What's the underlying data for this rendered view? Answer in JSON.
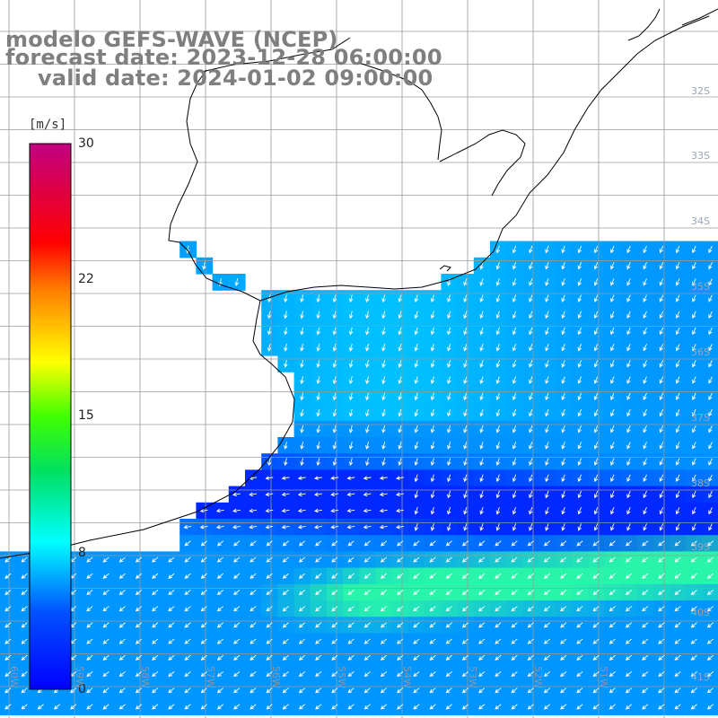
{
  "title": {
    "line1": "modelo GEFS-WAVE (NCEP)",
    "line2": "forecast date: 2023-12-28 06:00:00",
    "line3": "valid date: 2024-01-02 09:00:00"
  },
  "colorbar": {
    "unit": "[m/s]",
    "ticks": [
      {
        "label": "30",
        "value": 30
      },
      {
        "label": "22",
        "value": 22
      },
      {
        "label": "15",
        "value": 15
      },
      {
        "label": "8",
        "value": 8
      },
      {
        "label": "0",
        "value": 0
      }
    ],
    "min": 0,
    "max": 30
  },
  "map": {
    "lat_labels": [
      "32S",
      "33S",
      "34S",
      "35S",
      "36S",
      "37S",
      "38S",
      "39S",
      "40S",
      "41S"
    ],
    "lon_labels": [
      "60W",
      "59W",
      "58W",
      "57W",
      "56W",
      "55W",
      "54W",
      "53W",
      "52W",
      "51W"
    ],
    "colors": {
      "land": "#ffffff",
      "coast": "#000000",
      "grid": "#9a9a9a",
      "arrows": "#ffffff",
      "low_speed": "#0030ff",
      "mid_speed": "#00d8ff",
      "high_speed": "#3cff90"
    }
  }
}
